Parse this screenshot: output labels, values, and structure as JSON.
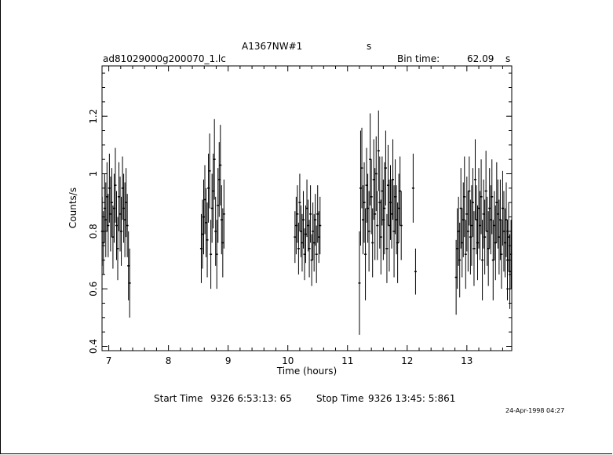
{
  "header": {
    "title": "A1367NW#1",
    "title_unit": "s",
    "filename": "ad81029000g200070_1.lc",
    "bin_time_label": "Bin time:",
    "bin_time_value": "62.09",
    "bin_time_unit": "s"
  },
  "footer": {
    "start_label": "Start Time",
    "start_value": "9326  6:53:13: 65",
    "stop_label": "Stop Time",
    "stop_value": "9326 13:45: 5:861",
    "timestamp": "24-Apr-1998 04:27"
  },
  "chart_data": {
    "type": "scatter",
    "xlabel": "Time (hours)",
    "ylabel": "Counts/s",
    "xlim": [
      6.887,
      13.752
    ],
    "ylim": [
      0.385,
      1.375
    ],
    "x_ticks": [
      7,
      8,
      9,
      10,
      11,
      12,
      13
    ],
    "y_ticks": [
      0.4,
      0.6,
      0.8,
      1,
      1.2
    ],
    "y_tick_labels": [
      "0.4",
      "0.6",
      "0.8",
      "1",
      "1.2"
    ],
    "error_bars": true,
    "series": [
      {
        "x": [
          6.89,
          6.91,
          6.93,
          6.95,
          6.97,
          6.99,
          7.01,
          7.03,
          7.05,
          7.07,
          7.09,
          7.11,
          7.13,
          7.15,
          7.17,
          7.19,
          7.21,
          7.23,
          7.25,
          7.27,
          7.29,
          7.31,
          7.33,
          7.35,
          8.55,
          8.57,
          8.59,
          8.61,
          8.63,
          8.65,
          8.67,
          8.69,
          8.71,
          8.73,
          8.75,
          8.77,
          8.79,
          8.81,
          8.83,
          8.85,
          8.87,
          8.89,
          8.91,
          8.93,
          10.12,
          10.14,
          10.16,
          10.18,
          10.2,
          10.22,
          10.24,
          10.26,
          10.28,
          10.3,
          10.32,
          10.34,
          10.36,
          10.38,
          10.4,
          10.42,
          10.44,
          10.46,
          10.48,
          10.5,
          10.52,
          10.54,
          11.2,
          11.22,
          11.24,
          11.26,
          11.28,
          11.3,
          11.32,
          11.34,
          11.36,
          11.38,
          11.4,
          11.42,
          11.44,
          11.46,
          11.48,
          11.5,
          11.52,
          11.54,
          11.56,
          11.58,
          11.6,
          11.62,
          11.64,
          11.66,
          11.68,
          11.7,
          11.72,
          11.74,
          11.76,
          11.78,
          11.8,
          11.82,
          11.84,
          11.86,
          11.88,
          11.9,
          12.1,
          12.14,
          12.82,
          12.84,
          12.86,
          12.88,
          12.9,
          12.92,
          12.94,
          12.96,
          12.98,
          13.0,
          13.02,
          13.04,
          13.06,
          13.08,
          13.1,
          13.12,
          13.14,
          13.16,
          13.18,
          13.2,
          13.22,
          13.24,
          13.26,
          13.28,
          13.3,
          13.32,
          13.34,
          13.36,
          13.38,
          13.4,
          13.42,
          13.44,
          13.46,
          13.48,
          13.5,
          13.52,
          13.54,
          13.56,
          13.58,
          13.6,
          13.62,
          13.64,
          13.66,
          13.68,
          13.7,
          13.72,
          13.74
        ],
        "y": [
          0.8,
          0.76,
          0.88,
          0.84,
          0.92,
          0.82,
          0.95,
          0.86,
          0.9,
          0.78,
          0.88,
          0.96,
          0.82,
          0.74,
          0.92,
          0.86,
          0.8,
          0.95,
          0.88,
          0.84,
          0.9,
          0.82,
          0.68,
          0.62,
          0.74,
          0.79,
          0.85,
          0.91,
          0.83,
          0.77,
          0.95,
          1.01,
          0.72,
          0.88,
          0.94,
          1.05,
          0.8,
          0.72,
          0.89,
          0.98,
          1.03,
          0.84,
          0.76,
          0.86,
          0.78,
          0.82,
          0.86,
          0.74,
          0.9,
          0.8,
          0.76,
          0.84,
          0.72,
          0.79,
          0.88,
          0.82,
          0.74,
          0.86,
          0.7,
          0.8,
          0.76,
          0.84,
          0.72,
          0.86,
          0.78,
          0.82,
          0.62,
          0.95,
          1.02,
          0.84,
          0.9,
          0.72,
          0.96,
          0.88,
          0.8,
          1.05,
          0.92,
          0.76,
          0.98,
          0.86,
          1.0,
          0.82,
          1.08,
          0.9,
          0.78,
          0.94,
          0.84,
          0.88,
          1.02,
          0.74,
          0.96,
          0.82,
          0.9,
          0.86,
          0.98,
          0.8,
          0.92,
          0.84,
          0.76,
          0.88,
          0.94,
          0.82,
          0.95,
          0.66,
          0.64,
          0.74,
          0.8,
          0.7,
          0.88,
          0.76,
          0.84,
          0.92,
          0.72,
          0.86,
          0.8,
          0.94,
          0.78,
          0.82,
          0.9,
          0.74,
          0.98,
          0.84,
          0.76,
          0.88,
          0.82,
          0.92,
          0.7,
          0.86,
          0.78,
          0.94,
          0.8,
          0.74,
          0.88,
          0.84,
          0.92,
          0.7,
          0.82,
          0.76,
          0.9,
          0.86,
          0.78,
          0.84,
          0.72,
          0.88,
          0.8,
          0.76,
          0.84,
          0.7,
          0.78,
          0.66,
          0.72
        ],
        "err": [
          0.12,
          0.11,
          0.12,
          0.13,
          0.12,
          0.11,
          0.12,
          0.13,
          0.12,
          0.11,
          0.12,
          0.13,
          0.12,
          0.11,
          0.12,
          0.13,
          0.12,
          0.11,
          0.12,
          0.13,
          0.12,
          0.11,
          0.12,
          0.12,
          0.12,
          0.12,
          0.13,
          0.12,
          0.12,
          0.13,
          0.12,
          0.13,
          0.12,
          0.12,
          0.13,
          0.14,
          0.12,
          0.12,
          0.13,
          0.13,
          0.14,
          0.12,
          0.12,
          0.12,
          0.09,
          0.1,
          0.1,
          0.09,
          0.1,
          0.09,
          0.1,
          0.1,
          0.09,
          0.1,
          0.1,
          0.09,
          0.1,
          0.1,
          0.09,
          0.1,
          0.1,
          0.09,
          0.1,
          0.1,
          0.09,
          0.1,
          0.18,
          0.2,
          0.14,
          0.12,
          0.14,
          0.16,
          0.13,
          0.12,
          0.14,
          0.16,
          0.13,
          0.12,
          0.14,
          0.16,
          0.13,
          0.12,
          0.14,
          0.16,
          0.13,
          0.12,
          0.14,
          0.16,
          0.13,
          0.12,
          0.14,
          0.16,
          0.13,
          0.12,
          0.14,
          0.16,
          0.13,
          0.12,
          0.14,
          0.12,
          0.12,
          0.12,
          0.12,
          0.08,
          0.13,
          0.14,
          0.12,
          0.13,
          0.14,
          0.12,
          0.13,
          0.14,
          0.12,
          0.13,
          0.14,
          0.12,
          0.13,
          0.14,
          0.12,
          0.13,
          0.14,
          0.12,
          0.13,
          0.14,
          0.12,
          0.13,
          0.14,
          0.12,
          0.13,
          0.14,
          0.12,
          0.13,
          0.14,
          0.12,
          0.13,
          0.14,
          0.12,
          0.13,
          0.14,
          0.12,
          0.13,
          0.14,
          0.12,
          0.13,
          0.14,
          0.12,
          0.13,
          0.14,
          0.12,
          0.13,
          0.12
        ]
      }
    ]
  }
}
